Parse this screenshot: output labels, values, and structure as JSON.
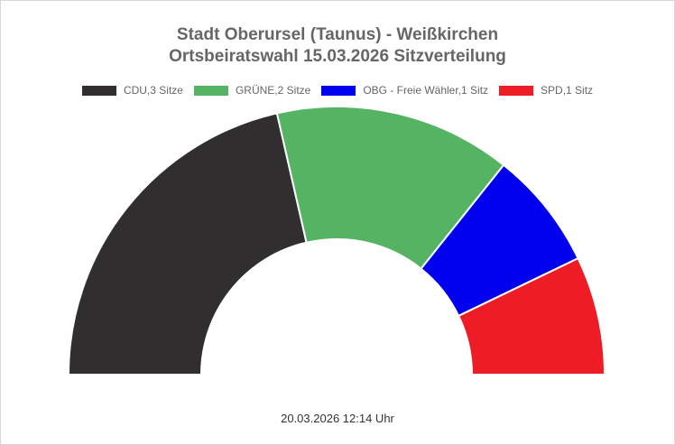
{
  "chart_data": {
    "type": "pie",
    "variant": "half-donut",
    "title": [
      "Stadt Oberursel (Taunus) - Weißkirchen",
      "Ortsbeiratswahl 15.03.2026 Sitzverteilung"
    ],
    "legend_position": "top",
    "series": [
      {
        "name": "CDU",
        "value": 3,
        "legend": "CDU,3 Sitze",
        "color": "#302e2f"
      },
      {
        "name": "GRÜNE",
        "value": 2,
        "legend": "GRÜNE,2 Sitze",
        "color": "#55b464"
      },
      {
        "name": "OBG - Freie Wähler",
        "value": 1,
        "legend": "OBG - Freie Wähler,1 Sitz",
        "color": "#0000ee"
      },
      {
        "name": "SPD",
        "value": 1,
        "legend": "SPD,1 Sitz",
        "color": "#ee1c25"
      }
    ]
  },
  "footer": "20.03.2026 12:14 Uhr"
}
